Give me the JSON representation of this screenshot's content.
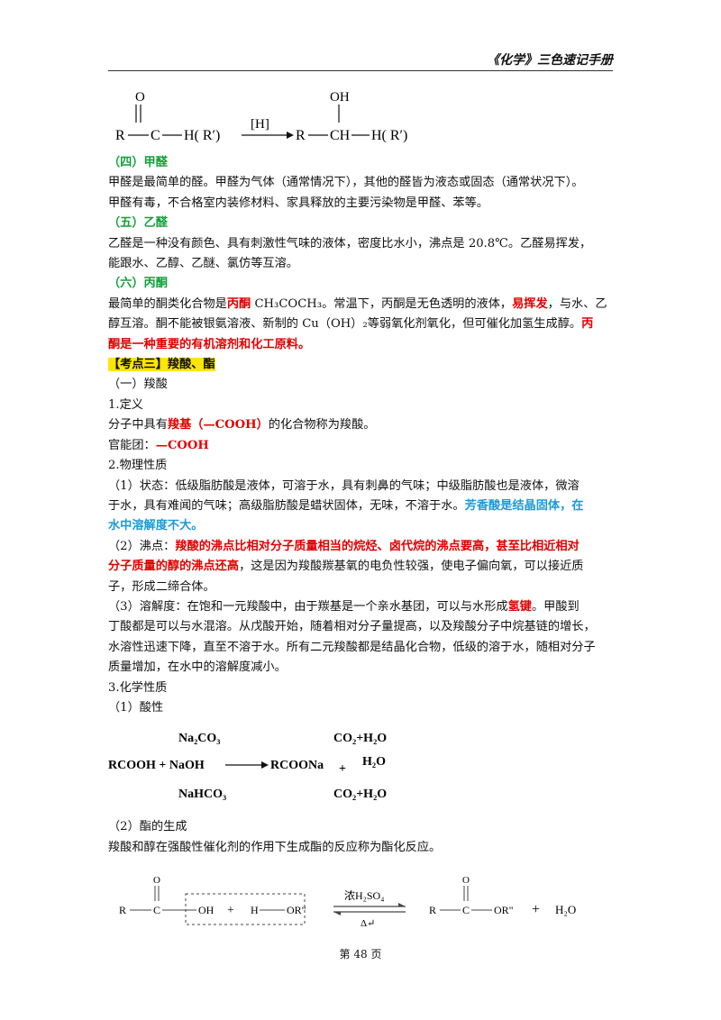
{
  "header": {
    "title": "《化学》三色速记手册"
  },
  "reaction_reduction": {
    "R": "R",
    "C": "C",
    "O": "O",
    "OH": "OH",
    "H_Rp": "H( R′)",
    "reagent": "[H]",
    "R2": "R",
    "CH": "CH",
    "H_Rp2": "H( R′)"
  },
  "s4": {
    "heading": "（四）甲醛",
    "p1": "甲醛是最简单的醛。甲醛为气体（通常情况下），其他的醛皆为液态或固态（通常状况下）。",
    "p2": "甲醛有毒，不合格室内装修材料、家具释放的主要污染物是甲醛、苯等。"
  },
  "s5": {
    "heading": "（五）乙醛",
    "p1": "乙醛是一种没有颜色、具有刺激性气味的液体，密度比水小，沸点是 20.8℃。乙醛易挥发，",
    "p2": "能跟水、乙醇、乙醚、氯仿等互溶。"
  },
  "s6": {
    "heading": "（六）丙酮",
    "l1_a": "最简单的酮类化合物是",
    "l1_red1": "丙酮",
    "l1_b": " CH₃COCH₃。常温下，丙酮是无色透明的液体，",
    "l1_red2": "易挥发",
    "l1_c": "，与水、乙",
    "l2_a": "醇互溶。酮不能被银氨溶液、新制的 Cu（OH）₂等弱氧化剂氧化，但可催化加氢生成醇。",
    "l2_red": "丙",
    "l3_red": "酮是一种重要的有机溶剂和化工原料。"
  },
  "kd3": {
    "heading": "【考点三】羧酸、酯",
    "sub1": "（一）羧酸",
    "def_title": "1.定义",
    "def_a": "分子中具有",
    "def_red": "羧基（—COOH）",
    "def_b": "的化合物称为羧酸。",
    "fg_a": "官能团：",
    "fg_red": "—COOH",
    "phys_title": "2.物理性质",
    "state_l1": "（1）状态：低级脂肪酸是液体，可溶于水，具有刺鼻的气味；中级脂肪酸也是液体，微溶",
    "state_l2_a": "于水，具有难闻的气味；高级脂肪酸是蜡状固体，无味，不溶于水。",
    "state_l2_blue": "芳香酸是结晶固体，在",
    "state_l3_blue": "水中溶解度不大。",
    "bp_l1_a": "（2）沸点：",
    "bp_l1_red": "羧酸的沸点比相对分子质量相当的烷烃、卤代烷的沸点要高，甚至比相近相对",
    "bp_l2_red": "分子质量的醇的沸点还高",
    "bp_l2_b": "，这是因为羧酸羰基氧的电负性较强，使电子偏向氧，可以接近质",
    "bp_l3": "子，形成二缔合体。",
    "sol_l1": "（3）溶解度：在饱和一元羧酸中，由于羰基是一个亲水基团，可以与水形成",
    "sol_l1_red": "氢键",
    "sol_l1_b": "。甲酸到",
    "sol_l2": "丁酸都是可以与水混溶。从戊酸开始，随着相对分子量提高，以及羧酸分子中烷基链的增长，",
    "sol_l3": "水溶性迅速下降，直至不溶于水。所有二元羧酸都是结晶化合物，低级的溶于水，随相对分子",
    "sol_l4": "质量增加，在水中的溶解度减小。",
    "chem_title": "3.化学性质",
    "acid_title": "（1）酸性",
    "ester_title": "（2）酯的生成",
    "ester_def": "羧酸和醇在强酸性催化剂的作用下生成酯的反应称为酯化反应。"
  },
  "reaction_acid": {
    "left": "RCOOH + NaOH",
    "top_reagent": "Na₂CO₃",
    "bottom_reagent": "NaHCO₃",
    "product": "RCOONa",
    "plus": "+",
    "p_top": "CO₂+H₂O",
    "p_mid": "H₂O",
    "p_bot": "CO₂+H₂O"
  },
  "reaction_ester": {
    "R": "R",
    "C": "C",
    "O": "O",
    "OH": "OH",
    "plus1": "+",
    "H": "H",
    "ORpp": "OR\"",
    "catalyst": "浓H₂SO₄",
    "heat": "Δ↵",
    "R2": "R",
    "C2": "C",
    "O2": "O",
    "ORpp2": "OR\"",
    "plus2": "+",
    "water": "H₂O"
  },
  "footer": {
    "page": "第 48 页"
  }
}
